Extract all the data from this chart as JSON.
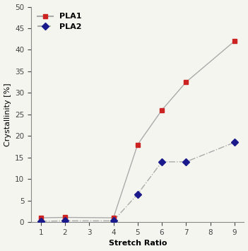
{
  "pla1_x": [
    1,
    2,
    4,
    5,
    6,
    7,
    9
  ],
  "pla1_y": [
    1.0,
    1.1,
    1.0,
    18.0,
    26.0,
    32.5,
    42.0
  ],
  "pla2_x": [
    1,
    2,
    4,
    5,
    6,
    7,
    9
  ],
  "pla2_y": [
    0.2,
    0.3,
    0.3,
    6.5,
    14.0,
    14.0,
    18.5
  ],
  "pla1_color": "#cc2222",
  "pla2_color": "#1a1a8c",
  "line_color": "#aaaaaa",
  "xlabel": "Stretch Ratio",
  "ylabel": "Crystallinity [%]",
  "xlim": [
    0.6,
    9.4
  ],
  "ylim": [
    0,
    50
  ],
  "xticks": [
    1,
    2,
    3,
    4,
    5,
    6,
    7,
    8,
    9
  ],
  "yticks": [
    0,
    5,
    10,
    15,
    20,
    25,
    30,
    35,
    40,
    45,
    50
  ],
  "legend_labels": [
    "PLA1",
    "PLA2"
  ],
  "bg_color": "#f5f5f0"
}
